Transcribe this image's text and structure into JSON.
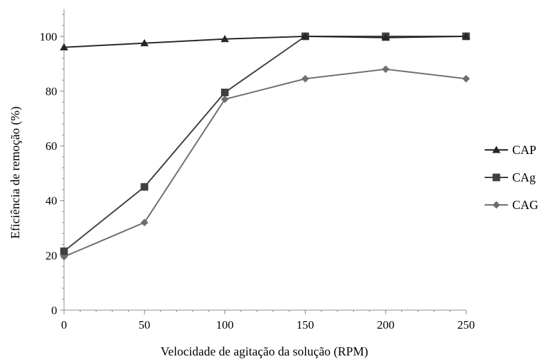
{
  "chart_data": {
    "type": "line",
    "x": [
      0,
      50,
      100,
      150,
      200,
      250
    ],
    "xlabel": "Velocidade de agitação da solução (RPM)",
    "ylabel": "Eficiência de remoção (%)",
    "xlim": [
      0,
      250
    ],
    "ylim": [
      0,
      110
    ],
    "x_ticks": [
      0,
      50,
      100,
      150,
      200,
      250
    ],
    "y_ticks": [
      0,
      20,
      40,
      60,
      80,
      100
    ],
    "grid": false,
    "legend_position": "right",
    "series": [
      {
        "name": "CAP",
        "marker": "triangle",
        "color": "#262626",
        "values": [
          96,
          97.5,
          99,
          100,
          99.5,
          100
        ]
      },
      {
        "name": "CAg",
        "marker": "square",
        "color": "#404040",
        "values": [
          21.5,
          45,
          79.5,
          100,
          100,
          100
        ]
      },
      {
        "name": "CAG",
        "marker": "diamond",
        "color": "#6e6e6e",
        "values": [
          19.5,
          32,
          77,
          84.5,
          88,
          84.5
        ]
      }
    ]
  }
}
